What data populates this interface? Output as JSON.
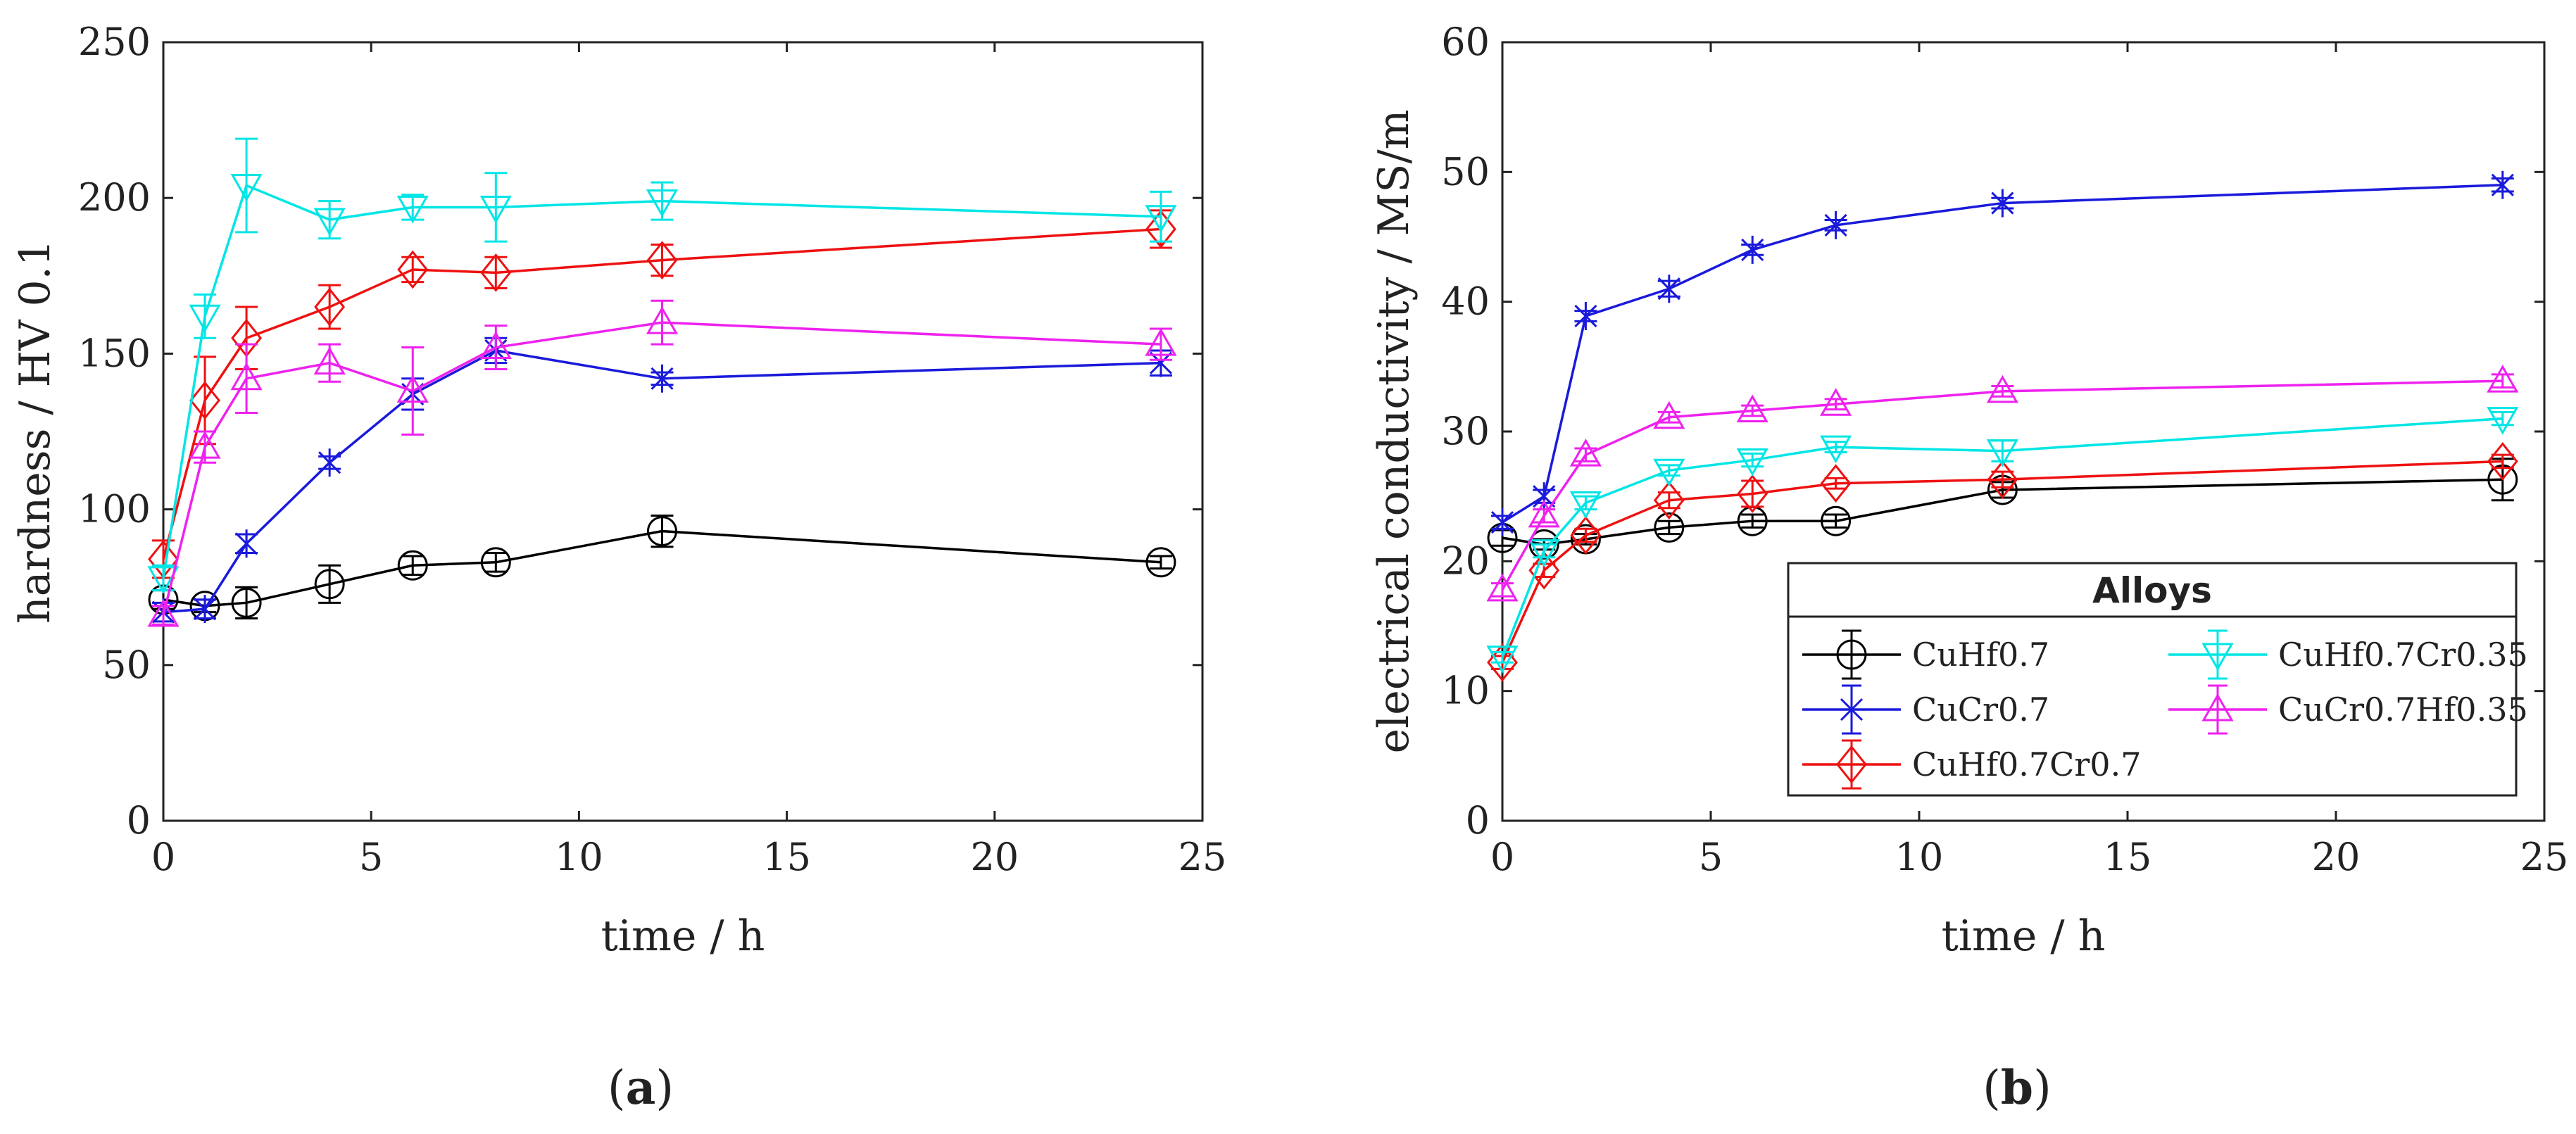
{
  "chart_data": [
    {
      "type": "line",
      "panel": "a",
      "caption": "(a)",
      "xlabel": "time / h",
      "ylabel": "hardness / HV 0.1",
      "xlim": [
        0,
        25
      ],
      "ylim": [
        0,
        250
      ],
      "xticks": [
        0,
        5,
        10,
        15,
        20,
        25
      ],
      "yticks": [
        0,
        50,
        100,
        150,
        200,
        250
      ],
      "x": [
        0,
        1,
        2,
        4,
        6,
        8,
        12,
        24
      ],
      "series": [
        {
          "name": "CuHf0.7",
          "color": "#000000",
          "marker": "circle",
          "values": [
            71,
            69,
            70,
            76,
            82,
            83,
            93,
            83
          ],
          "errors": [
            3,
            2,
            5,
            6,
            3,
            3,
            5,
            2
          ]
        },
        {
          "name": "CuCr0.7",
          "color": "#1a1adb",
          "marker": "star",
          "values": [
            67,
            68,
            89,
            115,
            137,
            151,
            142,
            147
          ],
          "errors": [
            3,
            3,
            3,
            2,
            5,
            4,
            2,
            4
          ]
        },
        {
          "name": "CuHf0.7Cr0.7",
          "color": "#ee1111",
          "marker": "diamond",
          "values": [
            84,
            135,
            155,
            165,
            177,
            176,
            180,
            190
          ],
          "errors": [
            6,
            14,
            10,
            7,
            4,
            5,
            5,
            6
          ]
        },
        {
          "name": "CuHf0.7Cr0.35",
          "color": "#00e5e5",
          "marker": "triangle-down",
          "values": [
            78,
            162,
            204,
            193,
            197,
            197,
            199,
            194
          ],
          "errors": [
            4,
            7,
            15,
            6,
            4,
            11,
            6,
            8
          ]
        },
        {
          "name": "CuCr0.7Hf0.35",
          "color": "#ee22ee",
          "marker": "triangle-up",
          "values": [
            66,
            120,
            142,
            147,
            138,
            152,
            160,
            153
          ],
          "errors": [
            3,
            5,
            11,
            6,
            14,
            7,
            7,
            5
          ]
        }
      ]
    },
    {
      "type": "line",
      "panel": "b",
      "caption": "(b)",
      "xlabel": "time / h",
      "ylabel": "electrical conductivity / MS/m",
      "xlim": [
        0,
        25
      ],
      "ylim": [
        0,
        60
      ],
      "xticks": [
        0,
        5,
        10,
        15,
        20,
        25
      ],
      "yticks": [
        0,
        10,
        20,
        30,
        40,
        50,
        60
      ],
      "x": [
        0,
        1,
        2,
        4,
        6,
        8,
        12,
        24
      ],
      "legend": {
        "title": "Alloys",
        "position": "lower-right",
        "columns": 2
      },
      "series": [
        {
          "name": "CuHf0.7",
          "color": "#000000",
          "marker": "circle",
          "values": [
            21.8,
            21.3,
            21.7,
            22.6,
            23.1,
            23.1,
            25.5,
            26.3
          ],
          "errors": [
            0.6,
            0.4,
            0.4,
            0.5,
            0.5,
            0.5,
            0.6,
            1.6
          ]
        },
        {
          "name": "CuCr0.7",
          "color": "#1a1adb",
          "marker": "star",
          "values": [
            23.0,
            25.0,
            38.9,
            41.0,
            44.0,
            45.9,
            47.6,
            49.0
          ],
          "errors": [
            0.5,
            0.5,
            0.4,
            0.6,
            0.4,
            0.4,
            0.4,
            0.5
          ]
        },
        {
          "name": "CuHf0.7Cr0.7",
          "color": "#ee1111",
          "marker": "diamond",
          "values": [
            12.2,
            19.3,
            22.0,
            24.7,
            25.2,
            26.0,
            26.3,
            27.7
          ],
          "errors": [
            0.5,
            0.5,
            0.5,
            0.6,
            1.0,
            0.4,
            0.6,
            0.5
          ]
        },
        {
          "name": "CuHf0.7Cr0.35",
          "color": "#00e5e5",
          "marker": "triangle-down",
          "values": [
            12.6,
            20.8,
            24.5,
            27.0,
            27.8,
            28.8,
            28.5,
            31.0
          ],
          "errors": [
            0.4,
            0.5,
            0.5,
            0.4,
            0.5,
            0.4,
            0.8,
            0.5
          ]
        },
        {
          "name": "CuCr0.7Hf0.35",
          "color": "#ee22ee",
          "marker": "triangle-up",
          "values": [
            17.8,
            23.5,
            28.2,
            31.1,
            31.6,
            32.1,
            33.1,
            33.9
          ],
          "errors": [
            0.5,
            0.5,
            0.5,
            0.4,
            0.4,
            0.4,
            0.4,
            0.5
          ]
        }
      ]
    }
  ]
}
